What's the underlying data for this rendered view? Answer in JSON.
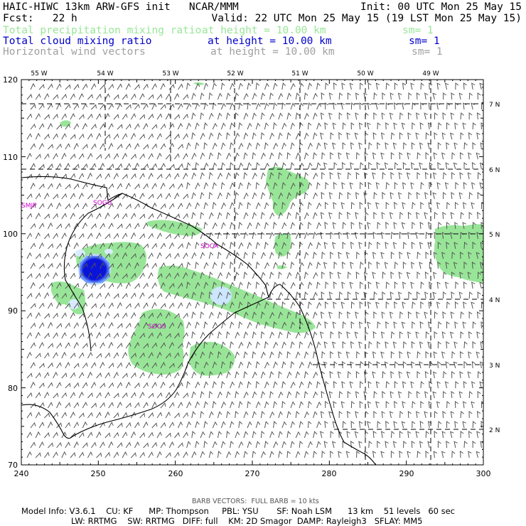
{
  "header": {
    "line1_left": "HAIC-HIWC 13km ARW-GFS init   NCAR/MMM",
    "line1_right": "Init: 00 UTC Mon 25 May 15",
    "line2_left": "Fcst:   22 h",
    "line2_right": "Valid: 22 UTC Mon 25 May 15 (19 LST Mon 25 May 15)",
    "fields": [
      {
        "name": "Total precipitation mixing ratio",
        "height": "at height = 10.00 km",
        "sm": "sm= 1",
        "color": "#98e598"
      },
      {
        "name": "Total cloud mixing ratio",
        "height": "at height = 10.00 km",
        "sm": "sm= 1",
        "color": "#0000cc"
      },
      {
        "name": "Horizontal wind vectors",
        "height": "at height = 10.00 km",
        "sm": "sm= 1",
        "color": "#a0a0a0"
      }
    ]
  },
  "map": {
    "top_lon_labels": [
      "55 W",
      "54 W",
      "53 W",
      "52 W",
      "51 W",
      "50 W",
      "49 W"
    ],
    "right_lat_labels": [
      "7 N",
      "6 N",
      "5 N",
      "4 N",
      "3 N",
      "2 N"
    ],
    "x_ticks": [
      "240",
      "250",
      "260",
      "270",
      "280",
      "290",
      "300"
    ],
    "y_ticks": [
      "120",
      "110",
      "100",
      "90",
      "80",
      "70"
    ],
    "stations": [
      "SMJP",
      "SOGU",
      "SOCA",
      "SOOS"
    ],
    "colors": {
      "precip": "#98e598",
      "cloud_core": "#0a14d8",
      "cloud_light": "#cce6ff",
      "coast": "#000000",
      "grid": "#000000",
      "barb": "#555555"
    }
  },
  "footer": {
    "barb_note": "BARB VECTORS:  FULL BARB = 10 kts",
    "line1": "Model Info: V3.6.1    CU: KF      MP: Thompson     PBL: YSU       SF: Noah LSM      13 km    51 levels   60 sec",
    "line2": "LW: RRTMG    SW: RRTMG   DIFF: full    KM: 2D Smagor  DAMP: Rayleigh3   SFLAY: MM5"
  }
}
